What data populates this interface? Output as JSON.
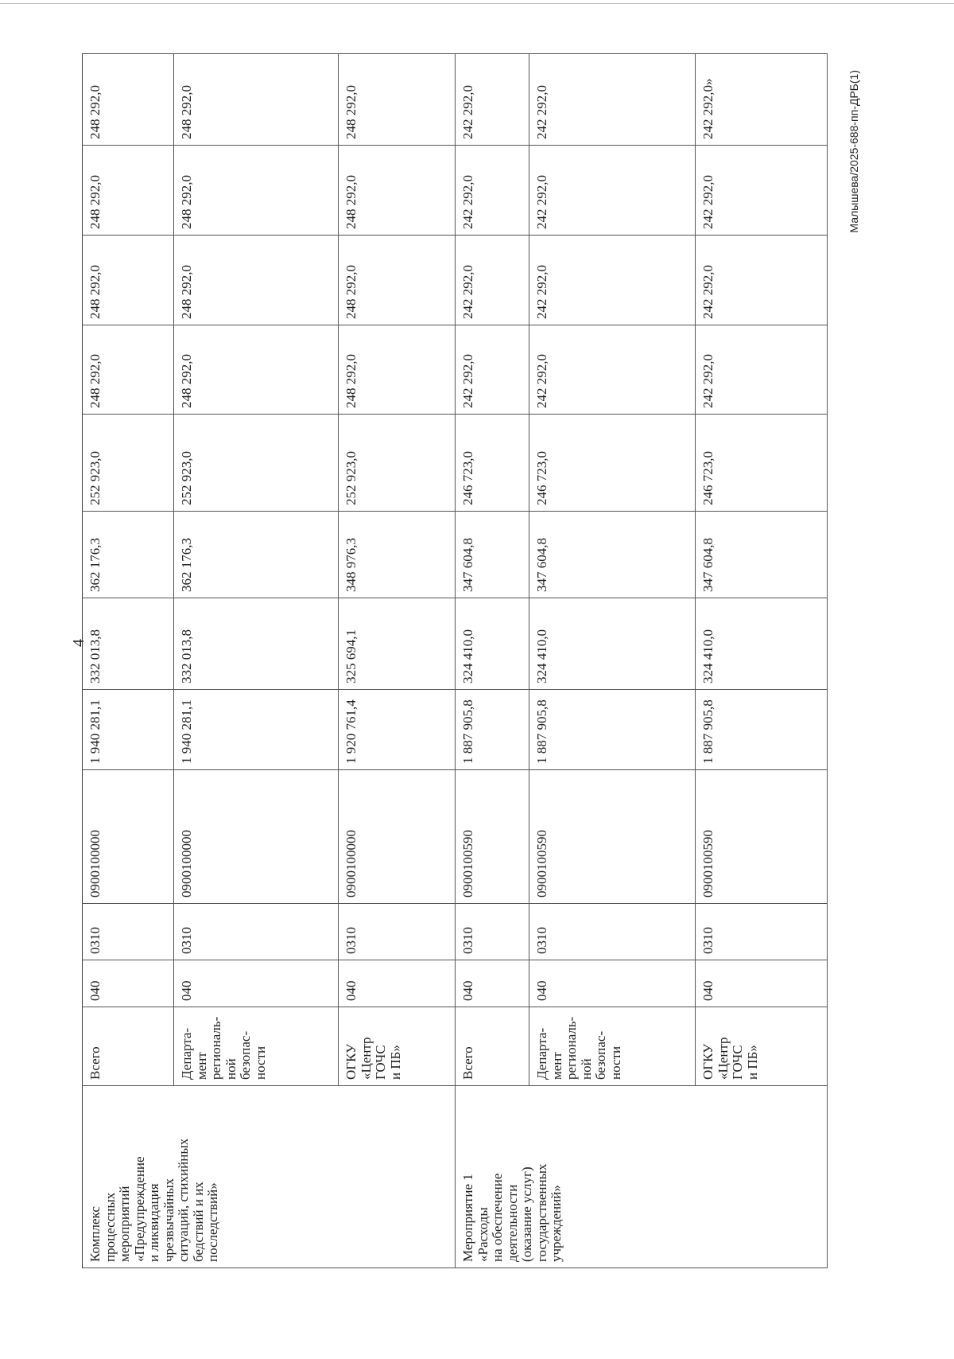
{
  "page_number": "4",
  "footer": "Малышева/2025-688-пп-ДРБ(1)",
  "groups": [
    {
      "name": "Комплекс\nпроцессных\nмероприятий\n«Предупреждение\nи ликвидация\nчрезвычайных\nситуаций, стихийных\nбедствий и их\nпоследствий»",
      "rows": [
        {
          "executor": "Всего",
          "grbs": "040",
          "rzpr": "0310",
          "csr": "0900100000",
          "values": [
            "1 940 281,1",
            "332 013,8",
            "362 176,3",
            "252 923,0",
            "248 292,0",
            "248 292,0",
            "248 292,0",
            "248 292,0"
          ]
        },
        {
          "executor": "Департа-\nмент\nрегиональ-\nной\nбезопас-\nности",
          "grbs": "040",
          "rzpr": "0310",
          "csr": "0900100000",
          "values": [
            "1 940 281,1",
            "332 013,8",
            "362 176,3",
            "252 923,0",
            "248 292,0",
            "248 292,0",
            "248 292,0",
            "248 292,0"
          ]
        },
        {
          "executor": "ОГКУ\n«Центр\nГОЧС\nи ПБ»",
          "grbs": "040",
          "rzpr": "0310",
          "csr": "0900100000",
          "values": [
            "1 920 761,4",
            "325 694,1",
            "348 976,3",
            "252 923,0",
            "248 292,0",
            "248 292,0",
            "248 292,0",
            "248 292,0"
          ]
        }
      ]
    },
    {
      "name": "Мероприятие 1\n«Расходы\nна обеспечение\nдеятельности\n(оказание услуг)\nгосударственных\nучреждений»",
      "rows": [
        {
          "executor": "Всего",
          "grbs": "040",
          "rzpr": "0310",
          "csr": "0900100590",
          "values": [
            "1 887 905,8",
            "324 410,0",
            "347 604,8",
            "246 723,0",
            "242 292,0",
            "242 292,0",
            "242 292,0",
            "242 292,0"
          ]
        },
        {
          "executor": "Департа-\nмент\nрегиональ-\nной\nбезопас-\nности",
          "grbs": "040",
          "rzpr": "0310",
          "csr": "0900100590",
          "values": [
            "1 887 905,8",
            "324 410,0",
            "347 604,8",
            "246 723,0",
            "242 292,0",
            "242 292,0",
            "242 292,0",
            "242 292,0"
          ]
        },
        {
          "executor": "ОГКУ\n«Центр\nГОЧС\nи ПБ»",
          "grbs": "040",
          "rzpr": "0310",
          "csr": "0900100590",
          "values": [
            "1 887 905,8",
            "324 410,0",
            "347 604,8",
            "246 723,0",
            "242 292,0",
            "242 292,0",
            "242 292,0",
            "242 292,0»"
          ]
        }
      ]
    }
  ]
}
